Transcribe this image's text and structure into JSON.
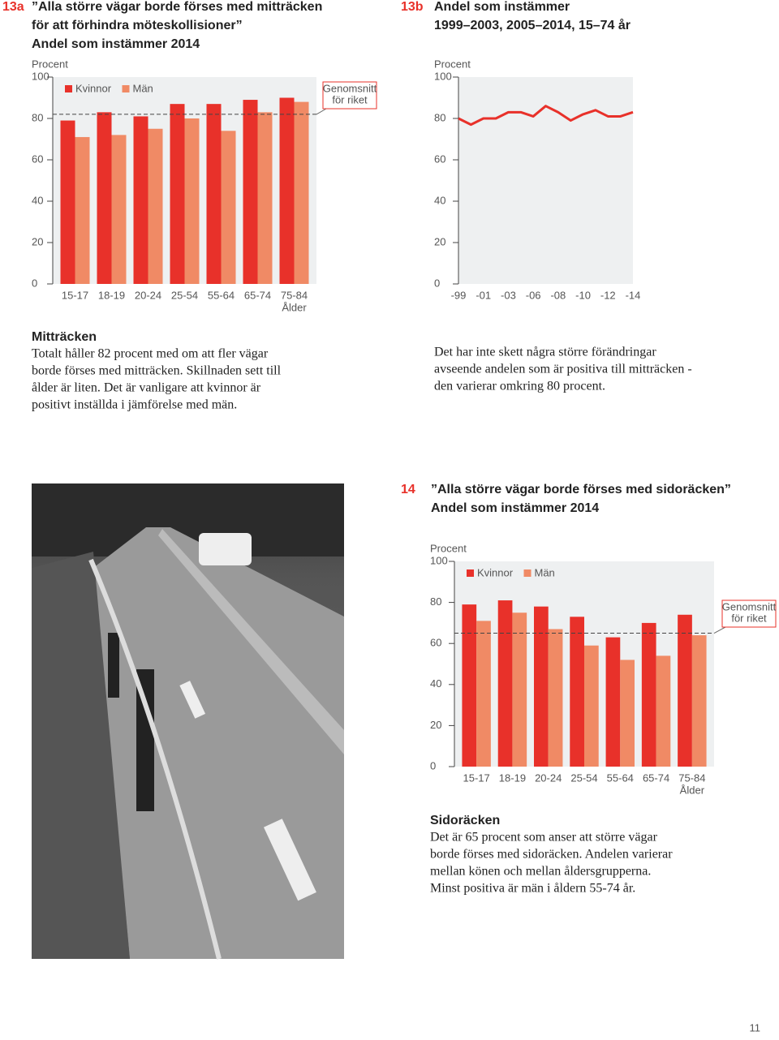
{
  "chart_data": [
    {
      "type": "bar",
      "number": "13a",
      "title": [
        "”Alla större vägar borde förses med mitträcken",
        "för att förhindra möteskollisioner”",
        "Andel som instämmer 2014"
      ],
      "ylabel": "Procent",
      "xlabel": "Ålder",
      "categories": [
        "15-17",
        "18-19",
        "20-24",
        "25-54",
        "55-64",
        "65-74",
        "75-84"
      ],
      "series": [
        {
          "name": "Kvinnor",
          "color": "#e8312a",
          "values": [
            79,
            83,
            81,
            87,
            87,
            89,
            90
          ]
        },
        {
          "name": "Män",
          "color": "#f08a65",
          "values": [
            71,
            72,
            75,
            80,
            74,
            83,
            88
          ]
        }
      ],
      "ylim": [
        0,
        100
      ],
      "yticks": [
        0,
        20,
        40,
        60,
        80,
        100
      ],
      "reference_line": {
        "value": 82,
        "label": [
          "Genomsnitt",
          "för riket"
        ]
      }
    },
    {
      "type": "line",
      "number": "13b",
      "title": [
        "Andel som instämmer",
        "1999–2003, 2005–2014, 15–74 år"
      ],
      "ylabel": "Procent",
      "categories": [
        "-99",
        null,
        "-01",
        null,
        "-03",
        null,
        "-06",
        null,
        "-08",
        null,
        "-10",
        null,
        "-12",
        null,
        "-14"
      ],
      "series": [
        {
          "color": "#e8312a",
          "values": [
            80,
            77,
            80,
            80,
            83,
            83,
            81,
            86,
            83,
            79,
            82,
            84,
            81,
            81,
            83
          ]
        }
      ],
      "ylim": [
        0,
        100
      ],
      "yticks": [
        0,
        20,
        40,
        60,
        80,
        100
      ]
    },
    {
      "type": "bar",
      "number": "14",
      "title": [
        "”Alla större vägar borde förses med sidoräcken”",
        "Andel som instämmer 2014"
      ],
      "ylabel": "Procent",
      "xlabel": "Ålder",
      "categories": [
        "15-17",
        "18-19",
        "20-24",
        "25-54",
        "55-64",
        "65-74",
        "75-84"
      ],
      "series": [
        {
          "name": "Kvinnor",
          "color": "#e8312a",
          "values": [
            79,
            81,
            78,
            73,
            63,
            70,
            74
          ]
        },
        {
          "name": "Män",
          "color": "#f08a65",
          "values": [
            71,
            75,
            67,
            59,
            52,
            54,
            64
          ]
        }
      ],
      "ylim": [
        0,
        100
      ],
      "yticks": [
        0,
        20,
        40,
        60,
        80,
        100
      ],
      "reference_line": {
        "value": 65,
        "label": [
          "Genomsnitt",
          "för riket"
        ]
      }
    }
  ],
  "texts": [
    {
      "heading": "Mitträcken",
      "lines": [
        "Totalt håller 82 procent med om att fler vägar",
        "borde förses med mitträcken. Skillnaden sett till",
        "ålder är liten. Det är vanligare att kvinnor är",
        "positivt inställda i jämförelse med män."
      ]
    },
    {
      "lines": [
        "Det har inte skett några större förändringar",
        "avseende andelen som är positiva till mitträcken -",
        "den varierar omkring 80 procent."
      ]
    },
    {
      "heading": "Sidoräcken",
      "lines": [
        "Det är 65 procent som anser att större vägar",
        "borde förses med sidoräcken. Andelen varierar",
        "mellan könen och mellan åldersgrupperna.",
        "Minst positiva är män i åldern 55-74 år."
      ]
    }
  ],
  "page_number": 11
}
